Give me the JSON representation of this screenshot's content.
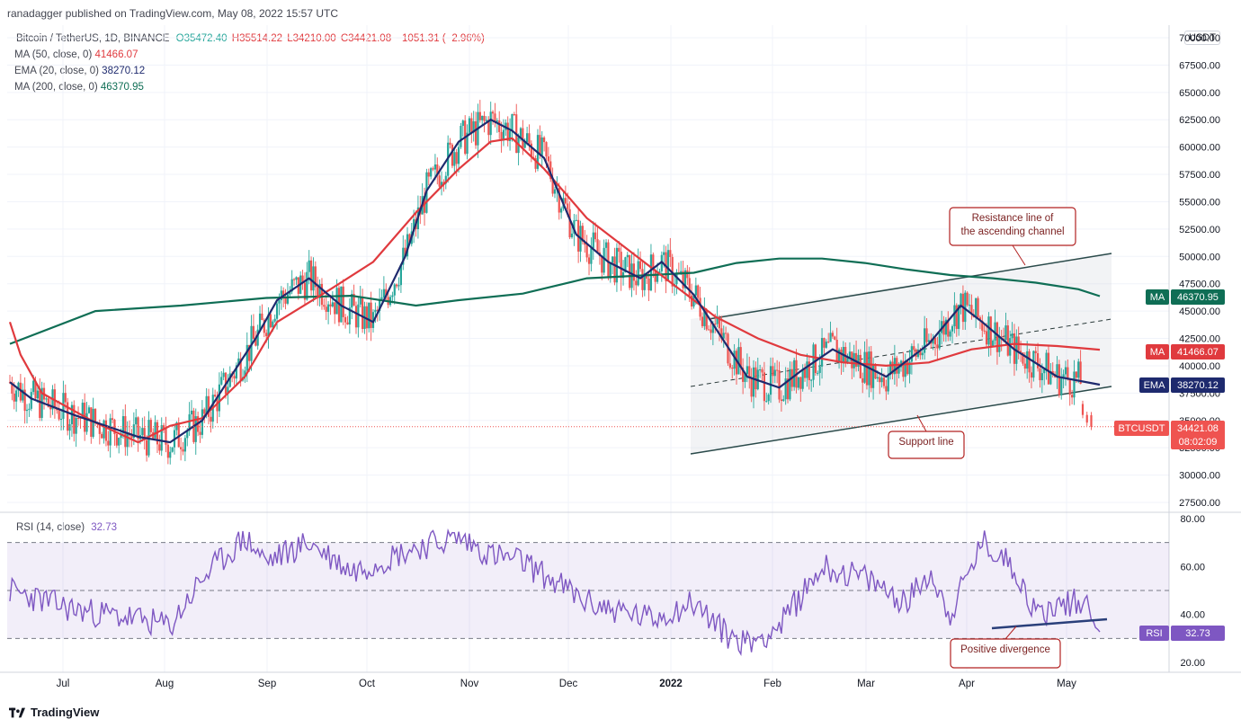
{
  "header": {
    "publisher": "ranadagger published on TradingView.com, May 08, 2022 15:57 UTC",
    "symbol": "Bitcoin / TetherUS, 1D, BINANCE",
    "open": "O35472.40",
    "high": "H35514.22",
    "low": "L34210.00",
    "close": "C34421.08",
    "change": "−1051.31 (−2.96%)",
    "currency": "USDT"
  },
  "indicators": {
    "ma50": {
      "label": "MA (50, close, 0)",
      "value": "41466.07"
    },
    "ema20": {
      "label": "EMA (20, close, 0)",
      "value": "38270.12"
    },
    "ma200": {
      "label": "MA (200, close, 0)",
      "value": "46370.95"
    },
    "rsi": {
      "label": "RSI (14, close)",
      "value": "32.73"
    }
  },
  "price_axis": {
    "ticks": [
      "70000.00",
      "67500.00",
      "65000.00",
      "62500.00",
      "60000.00",
      "57500.00",
      "55000.00",
      "52500.00",
      "50000.00",
      "47500.00",
      "45000.00",
      "42500.00",
      "40000.00",
      "37500.00",
      "35000.00",
      "32500.00",
      "30000.00",
      "27500.00"
    ],
    "tick_values": [
      70000,
      67500,
      65000,
      62500,
      60000,
      57500,
      55000,
      52500,
      50000,
      47500,
      45000,
      42500,
      40000,
      37500,
      35000,
      32500,
      30000,
      27500
    ]
  },
  "rsi_axis": {
    "ticks": [
      "80.00",
      "60.00",
      "40.00",
      "20.00"
    ],
    "tick_values": [
      80,
      60,
      40,
      20
    ],
    "upper_band": 70,
    "lower_band": 30,
    "mid": 50
  },
  "time_axis": {
    "labels": [
      "Jul",
      "Aug",
      "Sep",
      "Oct",
      "Nov",
      "Dec",
      "2022",
      "Feb",
      "Mar",
      "Apr",
      "May"
    ]
  },
  "badges": {
    "ma200": {
      "tag": "MA",
      "value": "46370.95",
      "color": "#0f6e55"
    },
    "ma50": {
      "tag": "MA",
      "value": "41466.07",
      "color": "#e03a3e"
    },
    "ema20": {
      "tag": "EMA",
      "value": "38270.12",
      "color": "#1e2a6e"
    },
    "price": {
      "tag": "BTCUSDT",
      "value": "34421.08",
      "countdown": "08:02:09",
      "color": "#ef5350"
    },
    "rsi": {
      "tag": "RSI",
      "value": "32.73",
      "color": "#7e57c2"
    }
  },
  "annotations": {
    "resistance": "Resistance line of the ascending channel",
    "resistance_line1": "Resistance line of",
    "resistance_line2": "the ascending channel",
    "support": "Support line",
    "divergence": "Positive divergence"
  },
  "footer": {
    "brand": "TradingView"
  },
  "colors": {
    "up": "#26a69a",
    "down": "#ef5350",
    "ma50": "#e03a3e",
    "ema20": "#1e2a6e",
    "ma200": "#0f6e55",
    "rsi": "#7e57c2",
    "annotation": "#b22222"
  },
  "chart_data": {
    "type": "candlestick",
    "x_labels": [
      "Jul",
      "Aug",
      "Sep",
      "Oct",
      "Nov",
      "Dec",
      "2022",
      "Feb",
      "Mar",
      "Apr",
      "May"
    ],
    "ylim": [
      26000,
      70500
    ],
    "key_points": {
      "ma50": [
        [
          0,
          44000
        ],
        [
          5,
          41000
        ],
        [
          15,
          37500
        ],
        [
          40,
          34800
        ],
        [
          60,
          33000
        ],
        [
          75,
          34500
        ],
        [
          90,
          35200
        ],
        [
          110,
          39000
        ],
        [
          125,
          44000
        ],
        [
          150,
          47000
        ],
        [
          170,
          49500
        ],
        [
          190,
          54000
        ],
        [
          210,
          58000
        ],
        [
          225,
          60500
        ],
        [
          235,
          60800
        ],
        [
          250,
          58000
        ],
        [
          270,
          53500
        ],
        [
          290,
          50500
        ],
        [
          310,
          47500
        ],
        [
          330,
          44500
        ],
        [
          350,
          42500
        ],
        [
          370,
          41000
        ],
        [
          390,
          40300
        ],
        [
          410,
          40000
        ],
        [
          430,
          40300
        ],
        [
          450,
          41500
        ],
        [
          470,
          42000
        ],
        [
          490,
          41800
        ],
        [
          510,
          41466
        ]
      ],
      "ema20": [
        [
          0,
          38500
        ],
        [
          10,
          37000
        ],
        [
          30,
          35500
        ],
        [
          60,
          33500
        ],
        [
          75,
          33000
        ],
        [
          90,
          35000
        ],
        [
          100,
          38000
        ],
        [
          115,
          42500
        ],
        [
          125,
          46000
        ],
        [
          140,
          48000
        ],
        [
          155,
          45500
        ],
        [
          170,
          44000
        ],
        [
          185,
          50000
        ],
        [
          195,
          56000
        ],
        [
          210,
          60500
        ],
        [
          225,
          62500
        ],
        [
          235,
          61500
        ],
        [
          250,
          59000
        ],
        [
          265,
          52000
        ],
        [
          280,
          49500
        ],
        [
          295,
          48000
        ],
        [
          305,
          49500
        ],
        [
          320,
          46500
        ],
        [
          335,
          42000
        ],
        [
          345,
          39000
        ],
        [
          360,
          38000
        ],
        [
          370,
          39500
        ],
        [
          385,
          41500
        ],
        [
          395,
          40500
        ],
        [
          410,
          39000
        ],
        [
          420,
          40500
        ],
        [
          430,
          42000
        ],
        [
          445,
          45500
        ],
        [
          455,
          44000
        ],
        [
          470,
          41500
        ],
        [
          490,
          39000
        ],
        [
          510,
          38270
        ]
      ],
      "ma200": [
        [
          0,
          42000
        ],
        [
          40,
          45000
        ],
        [
          80,
          45500
        ],
        [
          120,
          46200
        ],
        [
          160,
          46400
        ],
        [
          190,
          45500
        ],
        [
          210,
          46000
        ],
        [
          240,
          46600
        ],
        [
          270,
          48000
        ],
        [
          300,
          48300
        ],
        [
          320,
          48500
        ],
        [
          340,
          49400
        ],
        [
          360,
          49800
        ],
        [
          380,
          49800
        ],
        [
          400,
          49400
        ],
        [
          420,
          48800
        ],
        [
          440,
          48300
        ],
        [
          460,
          48000
        ],
        [
          480,
          47600
        ],
        [
          500,
          47000
        ],
        [
          510,
          46370
        ]
      ],
      "support_line": [
        [
          0,
          32000
        ],
        [
          100,
          37200
        ]
      ],
      "resistance_line": [
        [
          0,
          44300
        ],
        [
          100,
          50300
        ]
      ],
      "mid_channel": [
        [
          0,
          38100
        ],
        [
          100,
          44300
        ]
      ]
    },
    "last_close": 34421.08,
    "rsi": {
      "last": 32.73,
      "upper": 70,
      "lower": 30
    }
  }
}
